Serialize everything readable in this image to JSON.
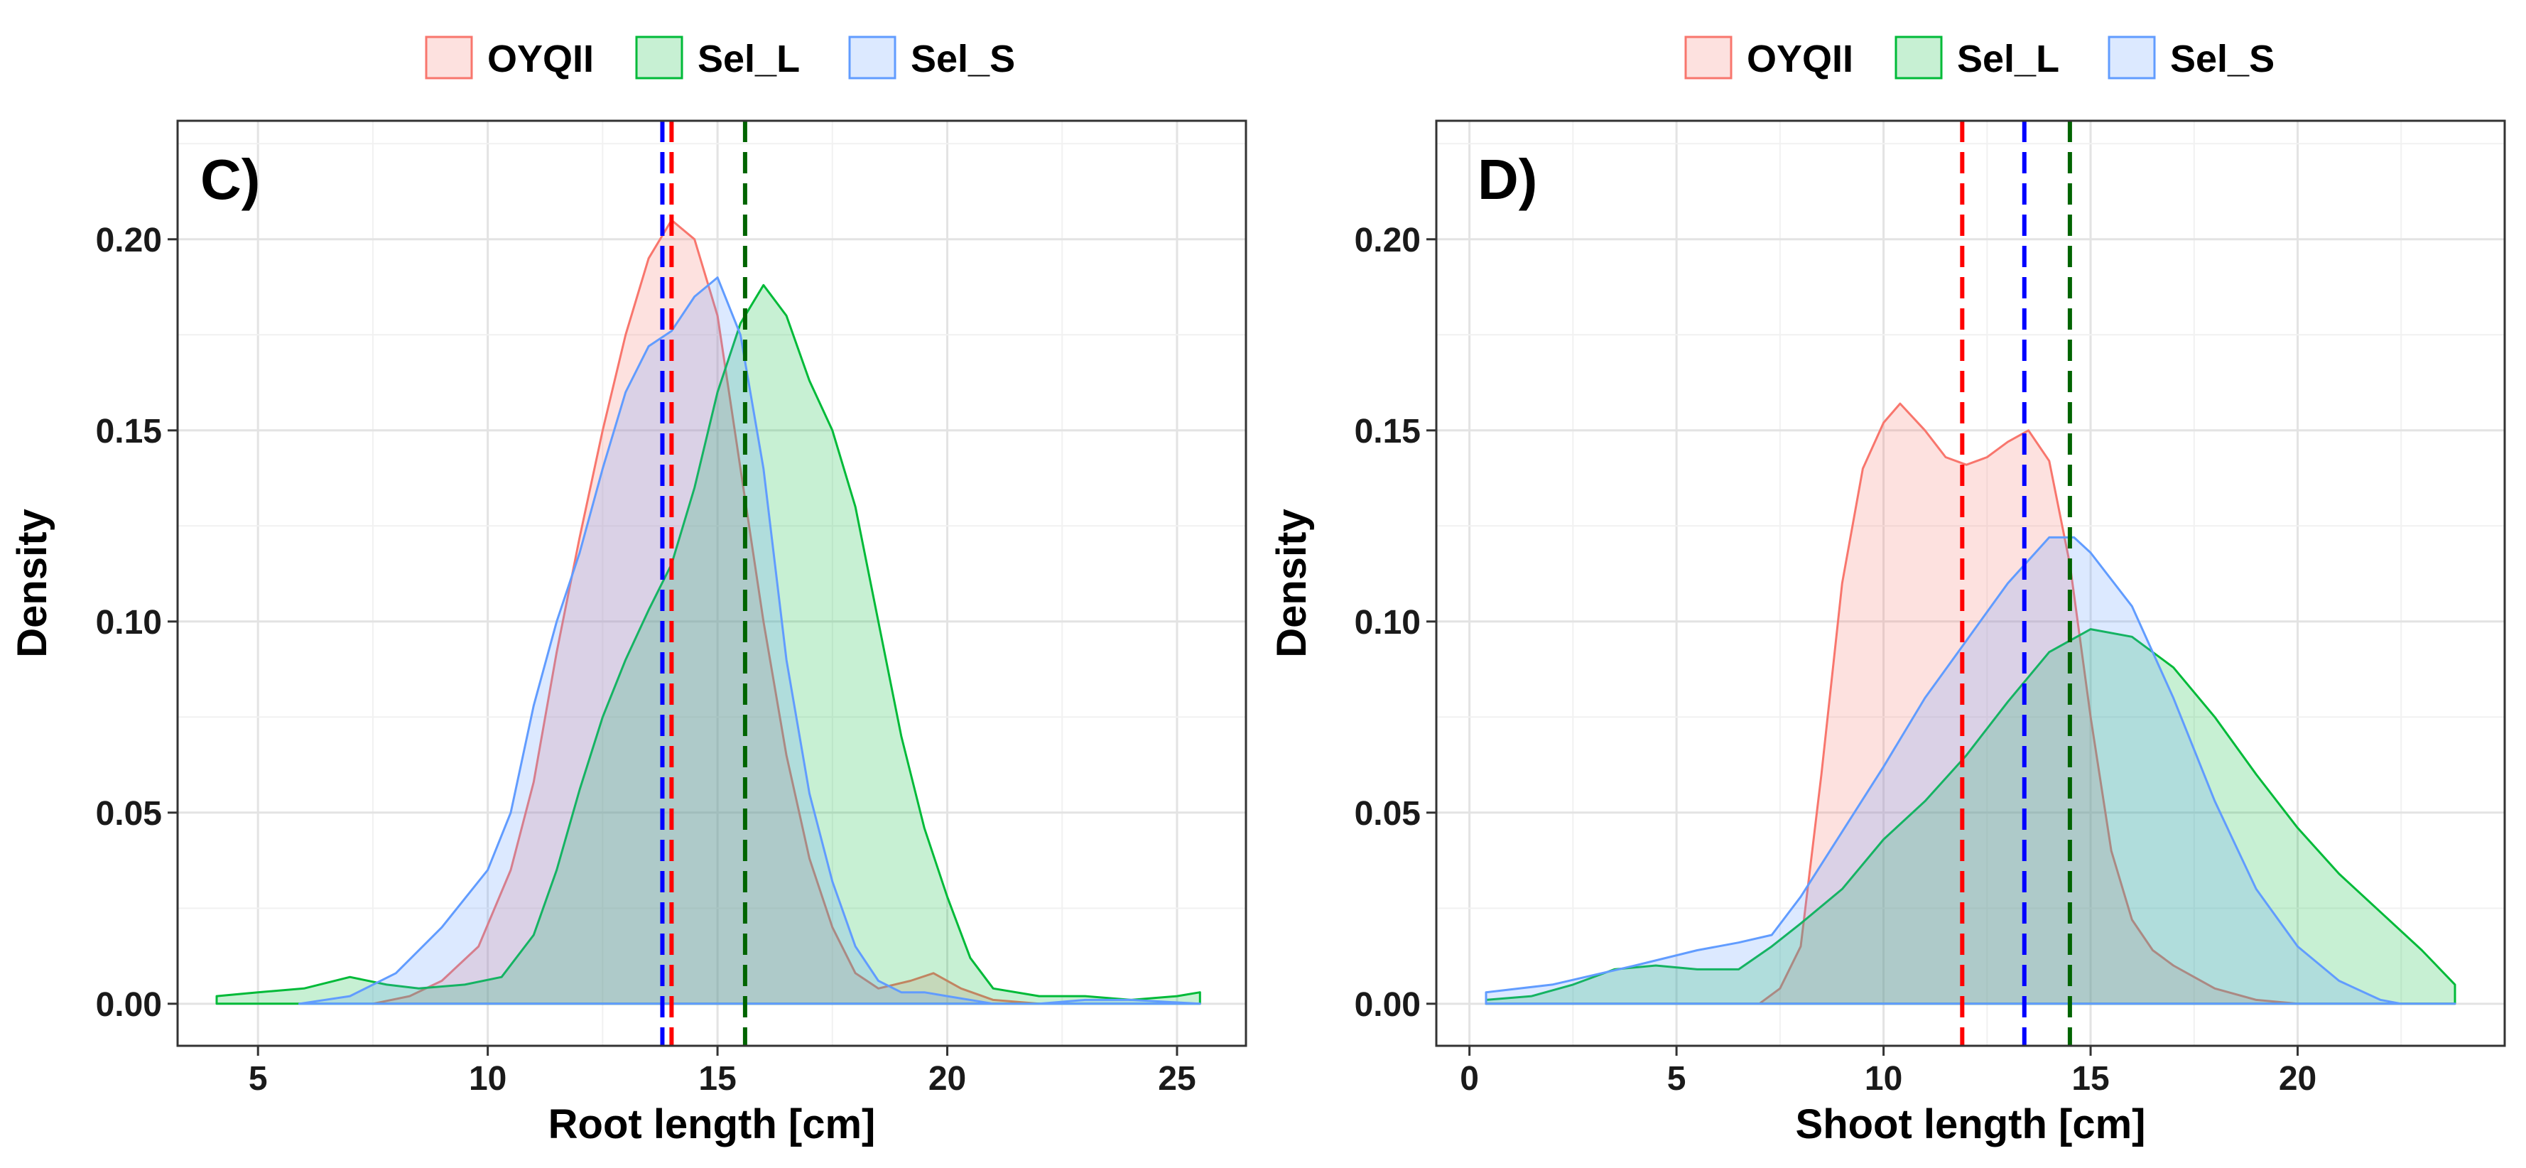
{
  "chart_data": [
    {
      "type": "area",
      "panel_label": "C)",
      "xlabel": "Root length [cm]",
      "ylabel": "Density",
      "xlim": [
        3.25,
        26.5
      ],
      "ylim": [
        -0.011,
        0.231
      ],
      "x_ticks": [
        5,
        10,
        15,
        20,
        25
      ],
      "x_tick_labels": [
        "5",
        "10",
        "15",
        "20",
        "25"
      ],
      "y_ticks": [
        0,
        0.05,
        0.1,
        0.15,
        0.2
      ],
      "y_tick_labels": [
        "0.00",
        "0.05",
        "0.10",
        "0.15",
        "0.20"
      ],
      "grid": true,
      "legend_position": "top",
      "series": [
        {
          "name": "OYQII",
          "fill": "#F8766D",
          "mean": 14.0,
          "mean_line_color": "#FF0000",
          "points": [
            [
              7.5,
              0
            ],
            [
              8.3,
              0.002
            ],
            [
              9,
              0.006
            ],
            [
              9.8,
              0.015
            ],
            [
              10.5,
              0.035
            ],
            [
              11,
              0.058
            ],
            [
              11.5,
              0.092
            ],
            [
              12,
              0.122
            ],
            [
              12.5,
              0.15
            ],
            [
              13,
              0.175
            ],
            [
              13.5,
              0.195
            ],
            [
              14,
              0.205
            ],
            [
              14.5,
              0.2
            ],
            [
              15,
              0.18
            ],
            [
              15.5,
              0.14
            ],
            [
              16,
              0.1
            ],
            [
              16.5,
              0.065
            ],
            [
              17,
              0.038
            ],
            [
              17.5,
              0.02
            ],
            [
              18,
              0.008
            ],
            [
              18.5,
              0.004
            ],
            [
              19.2,
              0.006
            ],
            [
              19.7,
              0.008
            ],
            [
              20.3,
              0.004
            ],
            [
              21,
              0.001
            ],
            [
              22,
              0
            ]
          ]
        },
        {
          "name": "Sel_L",
          "fill": "#00BA38",
          "mean": 15.6,
          "mean_line_color": "#006400",
          "points": [
            [
              4.1,
              0.002
            ],
            [
              5,
              0.003
            ],
            [
              6,
              0.004
            ],
            [
              7,
              0.007
            ],
            [
              7.8,
              0.005
            ],
            [
              8.5,
              0.004
            ],
            [
              9.5,
              0.005
            ],
            [
              10.3,
              0.007
            ],
            [
              11,
              0.018
            ],
            [
              11.5,
              0.035
            ],
            [
              12,
              0.056
            ],
            [
              12.5,
              0.075
            ],
            [
              13,
              0.09
            ],
            [
              13.5,
              0.103
            ],
            [
              14,
              0.115
            ],
            [
              14.5,
              0.135
            ],
            [
              15,
              0.16
            ],
            [
              15.5,
              0.178
            ],
            [
              16,
              0.188
            ],
            [
              16.5,
              0.18
            ],
            [
              17,
              0.163
            ],
            [
              17.5,
              0.15
            ],
            [
              18,
              0.13
            ],
            [
              18.5,
              0.1
            ],
            [
              19,
              0.07
            ],
            [
              19.5,
              0.046
            ],
            [
              20,
              0.028
            ],
            [
              20.5,
              0.012
            ],
            [
              21,
              0.004
            ],
            [
              22,
              0.002
            ],
            [
              23,
              0.002
            ],
            [
              24,
              0.001
            ],
            [
              25,
              0.002
            ],
            [
              25.5,
              0.003
            ]
          ]
        },
        {
          "name": "Sel_S",
          "fill": "#619CFF",
          "mean": 13.8,
          "mean_line_color": "#0000FF",
          "points": [
            [
              5.9,
              0
            ],
            [
              7,
              0.002
            ],
            [
              8,
              0.008
            ],
            [
              9,
              0.02
            ],
            [
              10,
              0.035
            ],
            [
              10.5,
              0.05
            ],
            [
              11,
              0.078
            ],
            [
              11.5,
              0.1
            ],
            [
              12,
              0.118
            ],
            [
              12.5,
              0.14
            ],
            [
              13,
              0.16
            ],
            [
              13.5,
              0.172
            ],
            [
              14,
              0.176
            ],
            [
              14.5,
              0.185
            ],
            [
              15,
              0.19
            ],
            [
              15.5,
              0.175
            ],
            [
              16,
              0.14
            ],
            [
              16.5,
              0.09
            ],
            [
              17,
              0.055
            ],
            [
              17.5,
              0.032
            ],
            [
              18,
              0.015
            ],
            [
              18.5,
              0.006
            ],
            [
              19,
              0.003
            ],
            [
              19.5,
              0.003
            ],
            [
              20,
              0.002
            ],
            [
              21,
              0
            ],
            [
              22,
              0
            ],
            [
              23,
              0.001
            ],
            [
              24,
              0.001
            ],
            [
              25.5,
              0
            ]
          ]
        }
      ]
    },
    {
      "type": "area",
      "panel_label": "D)",
      "xlabel": "Shoot length [cm]",
      "ylabel": "Density",
      "xlim": [
        -0.8,
        25
      ],
      "ylim": [
        -0.011,
        0.231
      ],
      "x_ticks": [
        0,
        5,
        10,
        15,
        20
      ],
      "x_tick_labels": [
        "0",
        "5",
        "10",
        "15",
        "20"
      ],
      "y_ticks": [
        0,
        0.05,
        0.1,
        0.15,
        0.2
      ],
      "y_tick_labels": [
        "0.00",
        "0.05",
        "0.10",
        "0.15",
        "0.20"
      ],
      "grid": true,
      "legend_position": "top",
      "series": [
        {
          "name": "OYQII",
          "fill": "#F8766D",
          "mean": 11.9,
          "mean_line_color": "#FF0000",
          "points": [
            [
              0.4,
              0
            ],
            [
              6,
              0
            ],
            [
              7,
              0
            ],
            [
              7.5,
              0.004
            ],
            [
              8,
              0.015
            ],
            [
              8.5,
              0.06
            ],
            [
              9,
              0.11
            ],
            [
              9.5,
              0.14
            ],
            [
              10,
              0.152
            ],
            [
              10.4,
              0.157
            ],
            [
              11,
              0.15
            ],
            [
              11.5,
              0.143
            ],
            [
              12,
              0.141
            ],
            [
              12.5,
              0.143
            ],
            [
              13,
              0.147
            ],
            [
              13.5,
              0.15
            ],
            [
              14,
              0.142
            ],
            [
              14.5,
              0.115
            ],
            [
              15,
              0.075
            ],
            [
              15.5,
              0.04
            ],
            [
              16,
              0.022
            ],
            [
              16.5,
              0.014
            ],
            [
              17,
              0.01
            ],
            [
              17.5,
              0.007
            ],
            [
              18,
              0.004
            ],
            [
              19,
              0.001
            ],
            [
              20,
              0
            ],
            [
              23.8,
              0
            ]
          ]
        },
        {
          "name": "Sel_L",
          "fill": "#00BA38",
          "mean": 14.5,
          "mean_line_color": "#006400",
          "points": [
            [
              0.4,
              0.001
            ],
            [
              1.5,
              0.002
            ],
            [
              2.5,
              0.005
            ],
            [
              3.5,
              0.009
            ],
            [
              4.5,
              0.01
            ],
            [
              5.5,
              0.009
            ],
            [
              6.5,
              0.009
            ],
            [
              7.3,
              0.015
            ],
            [
              8,
              0.021
            ],
            [
              9,
              0.03
            ],
            [
              10,
              0.043
            ],
            [
              11,
              0.053
            ],
            [
              12,
              0.065
            ],
            [
              13,
              0.079
            ],
            [
              14,
              0.092
            ],
            [
              15,
              0.098
            ],
            [
              16,
              0.096
            ],
            [
              17,
              0.088
            ],
            [
              18,
              0.075
            ],
            [
              19,
              0.06
            ],
            [
              20,
              0.046
            ],
            [
              21,
              0.034
            ],
            [
              22,
              0.024
            ],
            [
              23,
              0.014
            ],
            [
              23.8,
              0.005
            ]
          ]
        },
        {
          "name": "Sel_S",
          "fill": "#619CFF",
          "mean": 13.4,
          "mean_line_color": "#0000FF",
          "points": [
            [
              0.4,
              0.003
            ],
            [
              2,
              0.005
            ],
            [
              4,
              0.01
            ],
            [
              5.5,
              0.014
            ],
            [
              6.5,
              0.016
            ],
            [
              7.3,
              0.018
            ],
            [
              8,
              0.028
            ],
            [
              9,
              0.045
            ],
            [
              10,
              0.062
            ],
            [
              11,
              0.08
            ],
            [
              12,
              0.095
            ],
            [
              13,
              0.11
            ],
            [
              14,
              0.122
            ],
            [
              14.6,
              0.122
            ],
            [
              15,
              0.118
            ],
            [
              16,
              0.104
            ],
            [
              17,
              0.08
            ],
            [
              18,
              0.053
            ],
            [
              19,
              0.03
            ],
            [
              20,
              0.015
            ],
            [
              21,
              0.006
            ],
            [
              22,
              0.001
            ],
            [
              22.5,
              0
            ],
            [
              23.8,
              0
            ]
          ]
        }
      ]
    }
  ]
}
